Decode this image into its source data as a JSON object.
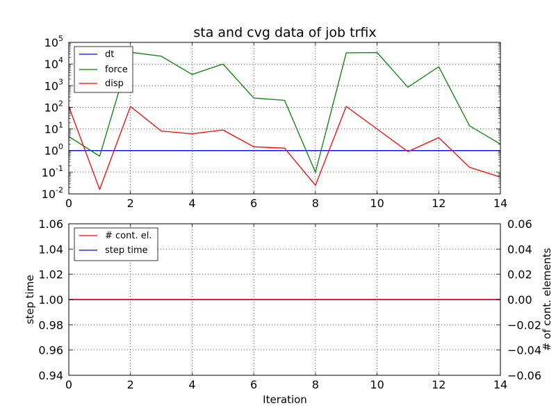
{
  "chart_data": [
    {
      "type": "line",
      "title": "sta and cvg data of job trfix",
      "xlabel": "",
      "ylabel": "",
      "yscale": "log",
      "xlim": [
        0,
        14
      ],
      "ylim": [
        0.01,
        100000
      ],
      "grid": true,
      "legend_position": "top-left",
      "x_ticks": [
        "0",
        "2",
        "4",
        "6",
        "8",
        "10",
        "12",
        "14"
      ],
      "y_ticks": [
        {
          "base": "10",
          "exp": "-2"
        },
        {
          "base": "10",
          "exp": "-1"
        },
        {
          "base": "10",
          "exp": "0"
        },
        {
          "base": "10",
          "exp": "1"
        },
        {
          "base": "10",
          "exp": "2"
        },
        {
          "base": "10",
          "exp": "3"
        },
        {
          "base": "10",
          "exp": "4"
        },
        {
          "base": "10",
          "exp": "5"
        }
      ],
      "series": [
        {
          "name": "dt",
          "color": "#0000ff",
          "x": [
            0,
            1,
            2,
            3,
            4,
            5,
            6,
            7,
            8,
            9,
            10,
            11,
            12,
            13,
            14
          ],
          "values": [
            1,
            1,
            1,
            1,
            1,
            1,
            1,
            1,
            1,
            1,
            1,
            1,
            1,
            1,
            1
          ]
        },
        {
          "name": "force",
          "color": "#008000",
          "x": [
            0,
            1,
            2,
            3,
            4,
            5,
            6,
            7,
            8,
            9,
            10,
            11,
            12,
            13,
            14
          ],
          "values": [
            4.5,
            0.55,
            35000,
            23000,
            3300,
            10000,
            270,
            210,
            0.1,
            33000,
            34000,
            850,
            7500,
            14,
            2
          ]
        },
        {
          "name": "disp",
          "color": "#ff0000",
          "x": [
            0,
            1,
            2,
            3,
            4,
            5,
            6,
            7,
            8,
            9,
            10,
            11,
            12,
            13,
            14
          ],
          "values": [
            110,
            0.016,
            110,
            8,
            6,
            9,
            1.5,
            1.3,
            0.025,
            110,
            10,
            0.9,
            4,
            0.17,
            0.06
          ]
        }
      ]
    },
    {
      "type": "line",
      "title": "",
      "xlabel": "Iteration",
      "ylabel": "step time",
      "ylabel_right": "# of cont. elements",
      "xlim": [
        0,
        14
      ],
      "ylim": [
        0.94,
        1.06
      ],
      "ylim_right": [
        -0.06,
        0.06
      ],
      "grid": true,
      "legend_position": "top-left",
      "x_ticks": [
        "0",
        "2",
        "4",
        "6",
        "8",
        "10",
        "12",
        "14"
      ],
      "y_ticks": [
        "0.94",
        "0.96",
        "0.98",
        "1.00",
        "1.02",
        "1.04",
        "1.06"
      ],
      "y_ticks_right": [
        "−0.06",
        "−0.04",
        "−0.02",
        "0.00",
        "0.02",
        "0.04",
        "0.06"
      ],
      "series": [
        {
          "name": "step time",
          "color": "#0000ff",
          "axis": "left",
          "x": [
            0,
            1,
            2,
            3,
            4,
            5,
            6,
            7,
            8,
            9,
            10,
            11,
            12,
            13,
            14
          ],
          "values": [
            1,
            1,
            1,
            1,
            1,
            1,
            1,
            1,
            1,
            1,
            1,
            1,
            1,
            1,
            1
          ]
        },
        {
          "name": "# cont. el.",
          "color": "#ff0000",
          "axis": "right",
          "x": [
            0,
            1,
            2,
            3,
            4,
            5,
            6,
            7,
            8,
            9,
            10,
            11,
            12,
            13,
            14
          ],
          "values": [
            0,
            0,
            0,
            0,
            0,
            0,
            0,
            0,
            0,
            0,
            0,
            0,
            0,
            0,
            0
          ]
        }
      ],
      "legend_order": [
        "# cont. el.",
        "step time"
      ]
    }
  ]
}
